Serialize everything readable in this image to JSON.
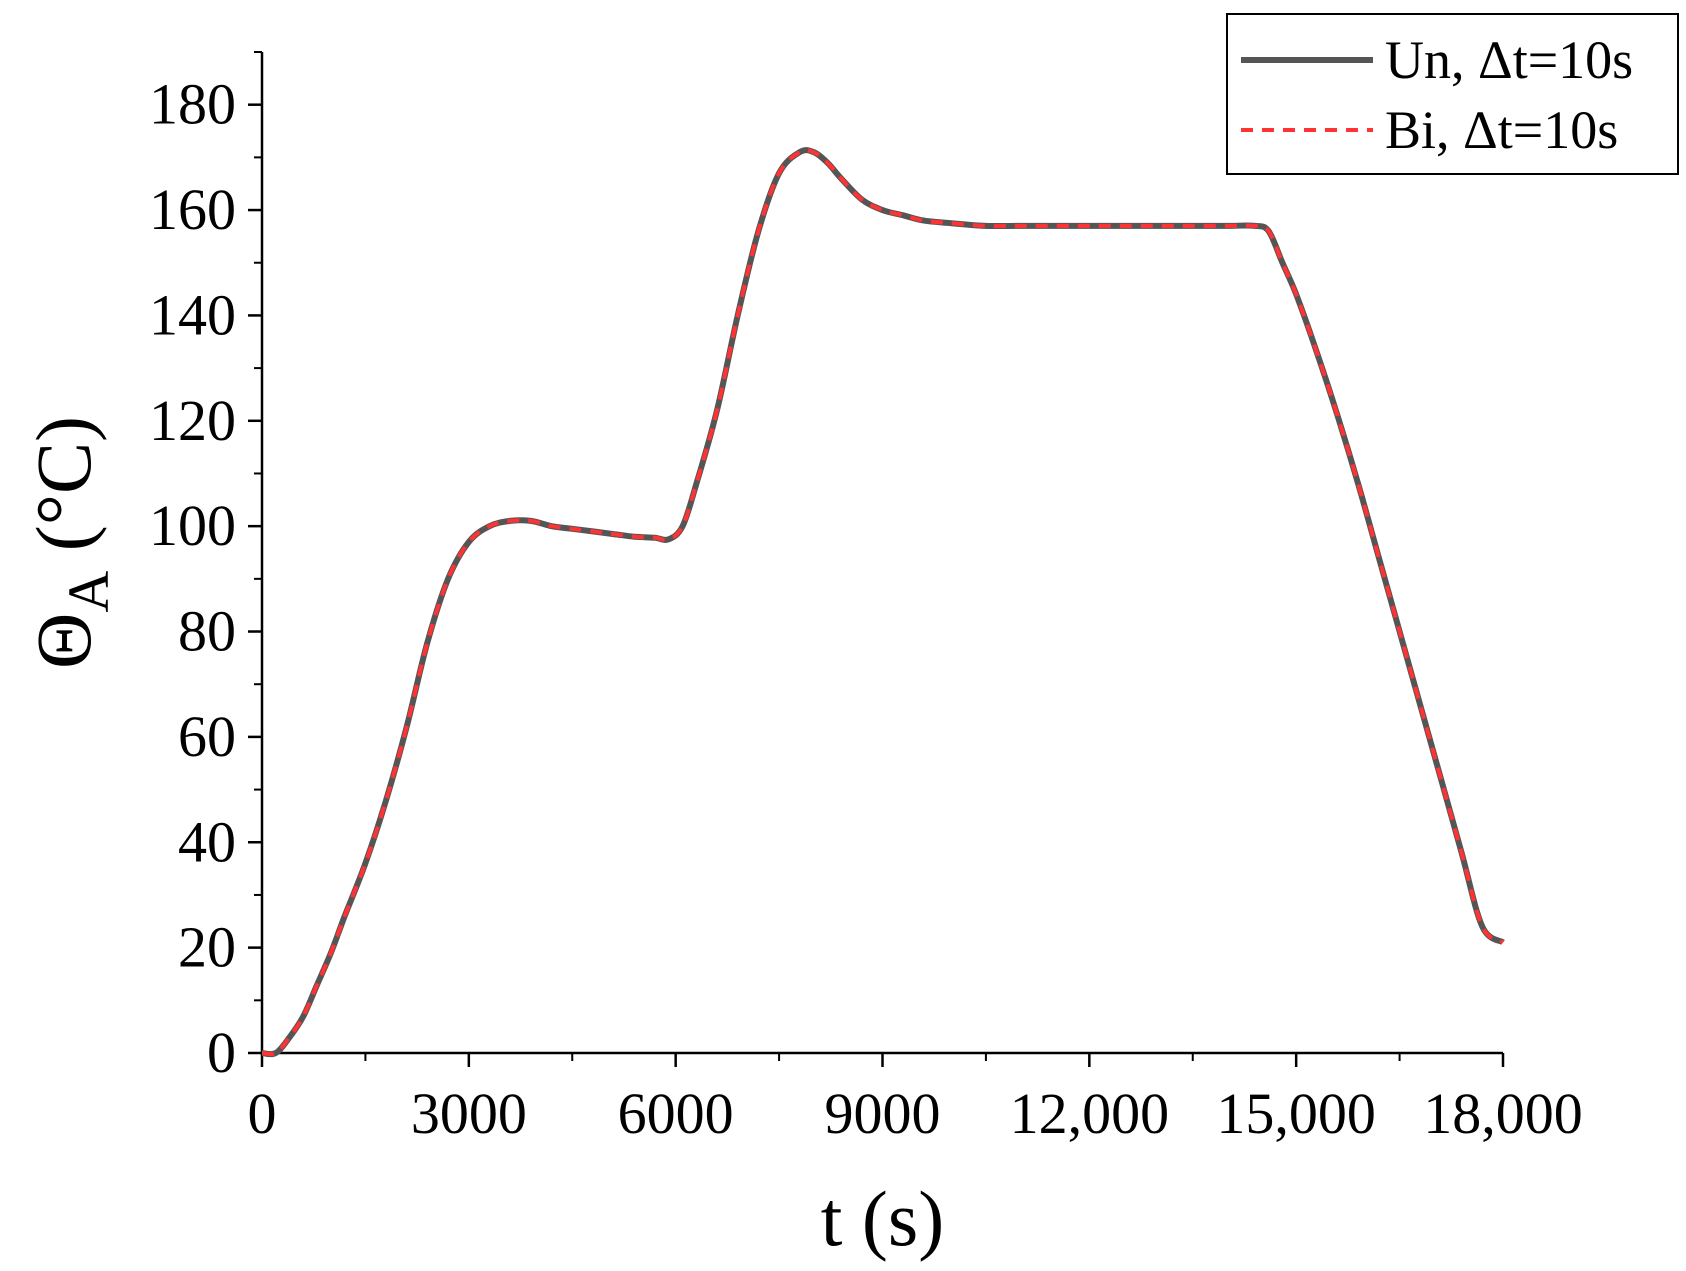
{
  "chart_data": {
    "type": "line",
    "xlabel": "t (s)",
    "ylabel": "Θ",
    "ylabel_sub": "A",
    "ylabel_unit": " (°C)",
    "xlim": [
      0,
      18000
    ],
    "ylim": [
      0,
      190
    ],
    "x_ticks": [
      {
        "value": 0,
        "label": "0"
      },
      {
        "value": 3000,
        "label": "3000"
      },
      {
        "value": 6000,
        "label": "6000"
      },
      {
        "value": 9000,
        "label": "9000"
      },
      {
        "value": 12000,
        "label": "12,000"
      },
      {
        "value": 15000,
        "label": "15,000"
      },
      {
        "value": 18000,
        "label": "18,000"
      }
    ],
    "y_ticks": [
      {
        "value": 0,
        "label": "0"
      },
      {
        "value": 20,
        "label": "20"
      },
      {
        "value": 40,
        "label": "40"
      },
      {
        "value": 60,
        "label": "60"
      },
      {
        "value": 80,
        "label": "80"
      },
      {
        "value": 100,
        "label": "100"
      },
      {
        "value": 120,
        "label": "120"
      },
      {
        "value": 140,
        "label": "140"
      },
      {
        "value": 160,
        "label": "160"
      },
      {
        "value": 180,
        "label": "180"
      }
    ],
    "legend_position": "top-right",
    "grid": false,
    "series": [
      {
        "name": "Un, Δt=10s",
        "color": "#555555",
        "style": "solid",
        "x": [
          0,
          200,
          400,
          600,
          800,
          1000,
          1200,
          1500,
          1800,
          2100,
          2400,
          2700,
          3000,
          3300,
          3600,
          3900,
          4200,
          4500,
          4800,
          5100,
          5400,
          5700,
          5900,
          6100,
          6300,
          6600,
          6900,
          7200,
          7500,
          7800,
          8000,
          8200,
          8400,
          8700,
          9000,
          9300,
          9600,
          10000,
          10500,
          11000,
          11500,
          12000,
          12500,
          13000,
          13500,
          14000,
          14400,
          14600,
          14800,
          15000,
          15300,
          15600,
          15900,
          16200,
          16500,
          16800,
          17100,
          17400,
          17700,
          18000
        ],
        "y": [
          0,
          0,
          3,
          7,
          13,
          19,
          26,
          36,
          48,
          62,
          78,
          90,
          97,
          100,
          101,
          101,
          100,
          99.5,
          99,
          98.5,
          98,
          97.8,
          97.5,
          100,
          108,
          122,
          140,
          156,
          167,
          171,
          171,
          169,
          166,
          162,
          160,
          159,
          158,
          157.5,
          157,
          157,
          157,
          157,
          157,
          157,
          157,
          157,
          157,
          156,
          150,
          144,
          133,
          121,
          108,
          94,
          80,
          66,
          52,
          38,
          24,
          21
        ]
      },
      {
        "name": "Bi, Δt=10s",
        "color": "#ff3333",
        "style": "dashed",
        "x": [
          0,
          200,
          400,
          600,
          800,
          1000,
          1200,
          1500,
          1800,
          2100,
          2400,
          2700,
          3000,
          3300,
          3600,
          3900,
          4200,
          4500,
          4800,
          5100,
          5400,
          5700,
          5900,
          6100,
          6300,
          6600,
          6900,
          7200,
          7500,
          7800,
          8000,
          8200,
          8400,
          8700,
          9000,
          9300,
          9600,
          10000,
          10500,
          11000,
          11500,
          12000,
          12500,
          13000,
          13500,
          14000,
          14400,
          14600,
          14800,
          15000,
          15300,
          15600,
          15900,
          16200,
          16500,
          16800,
          17100,
          17400,
          17700,
          18000
        ],
        "y": [
          0,
          0,
          3,
          7,
          13,
          19,
          26,
          36,
          48,
          62,
          78,
          90,
          97,
          100,
          101,
          101,
          100,
          99.5,
          99,
          98.5,
          98,
          97.8,
          97.5,
          100,
          108,
          122,
          140,
          156,
          167,
          171,
          171,
          169,
          166,
          162,
          160,
          159,
          158,
          157.5,
          157,
          157,
          157,
          157,
          157,
          157,
          157,
          157,
          157,
          156,
          150,
          144,
          133,
          121,
          108,
          94,
          80,
          66,
          52,
          38,
          24,
          21
        ]
      }
    ]
  }
}
